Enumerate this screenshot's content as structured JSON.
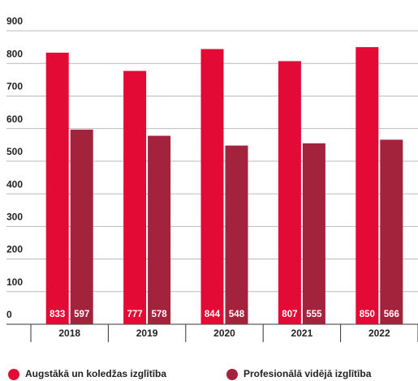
{
  "chart_data": {
    "type": "bar",
    "categories": [
      "2018",
      "2019",
      "2020",
      "2021",
      "2022"
    ],
    "series": [
      {
        "name": "Augstākā un koledžas izglītība",
        "color": "#e30b35",
        "values": [
          833,
          777,
          844,
          807,
          850
        ]
      },
      {
        "name": "Profesionālā vidējā izglītība",
        "color": "#a2233b",
        "values": [
          597,
          578,
          548,
          555,
          566
        ]
      }
    ],
    "ylim": [
      0,
      900
    ],
    "yticks": [
      0,
      100,
      200,
      300,
      400,
      500,
      600,
      700,
      800,
      900
    ],
    "grid": true,
    "legend": "bottom"
  }
}
